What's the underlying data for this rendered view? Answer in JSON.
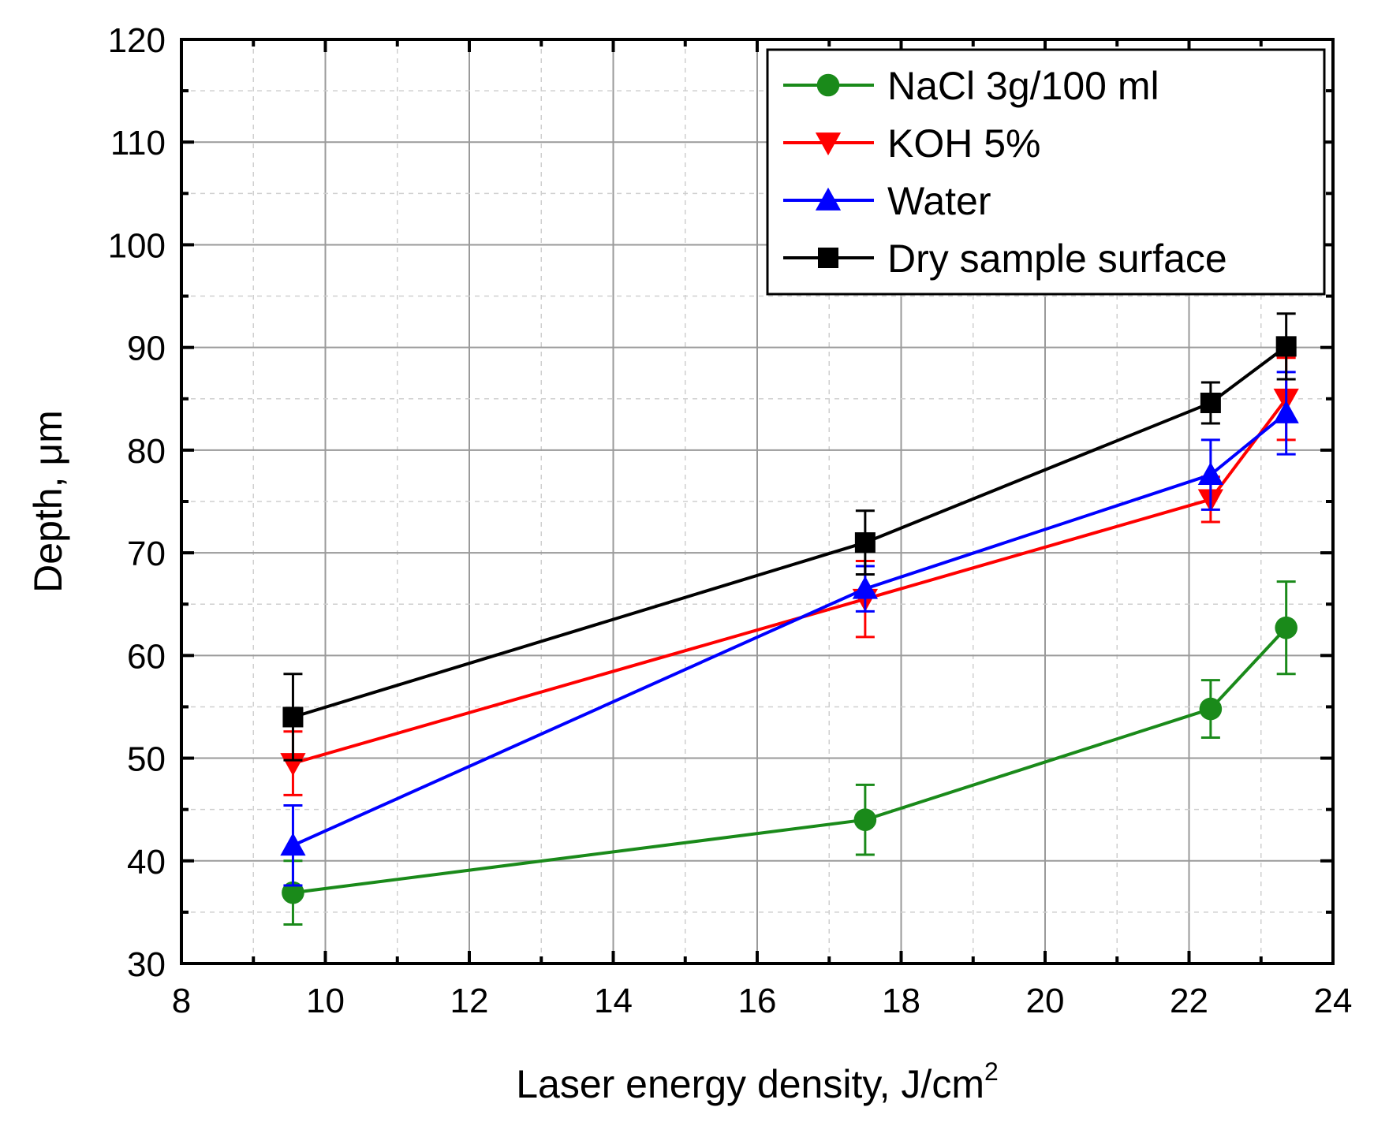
{
  "chart_data": {
    "type": "line",
    "title": "",
    "xlabel": "Laser energy density, J/cm",
    "xlabel_superscript": "2",
    "ylabel": "Depth, μm",
    "xlim": [
      8,
      24
    ],
    "ylim": [
      30,
      120
    ],
    "x_ticks": [
      "8",
      "10",
      "12",
      "14",
      "16",
      "18",
      "20",
      "22",
      "24"
    ],
    "y_ticks": [
      "30",
      "40",
      "50",
      "60",
      "70",
      "80",
      "90",
      "100",
      "110",
      "120"
    ],
    "grid": true,
    "legend_position": "top-right",
    "x": [
      9.55,
      17.5,
      22.3,
      23.35
    ],
    "series": [
      {
        "name": "NaCl 3g/100 ml",
        "color": "#1a8a1a",
        "marker": "circle",
        "values": [
          36.9,
          44.0,
          54.8,
          62.7
        ],
        "errors": [
          3.1,
          3.4,
          2.8,
          4.5
        ]
      },
      {
        "name": "KOH 5%",
        "color": "#ff0000",
        "marker": "triangle-down",
        "values": [
          49.5,
          65.5,
          75.2,
          85.0
        ],
        "errors": [
          3.1,
          3.7,
          2.2,
          4.0
        ]
      },
      {
        "name": "Water",
        "color": "#0000ff",
        "marker": "triangle-up",
        "values": [
          41.5,
          66.5,
          77.6,
          83.6
        ],
        "errors": [
          3.9,
          2.2,
          3.4,
          4.0
        ]
      },
      {
        "name": "Dry sample surface",
        "color": "#000000",
        "marker": "square",
        "values": [
          54.0,
          71.0,
          84.6,
          90.1
        ],
        "errors": [
          4.2,
          3.1,
          2.0,
          3.2
        ]
      }
    ]
  }
}
